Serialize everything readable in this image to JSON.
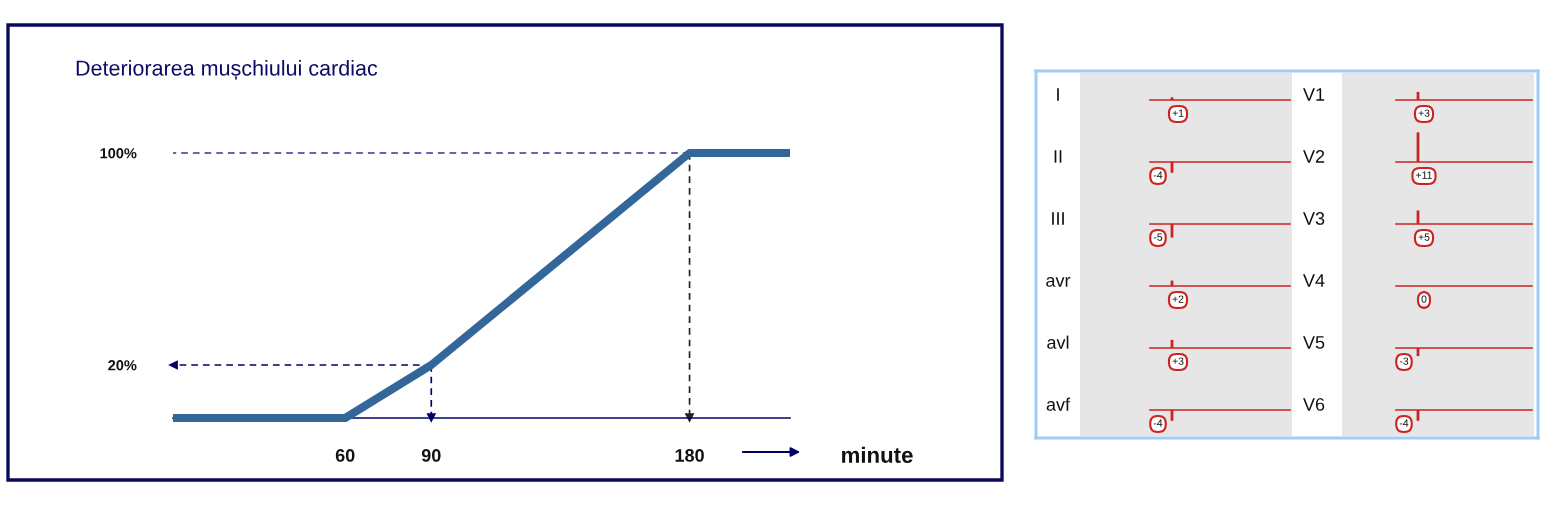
{
  "chart_data": [
    {
      "type": "line",
      "title": "Deteriorarea mușchiului cardiac",
      "xlabel": "minute",
      "x": [
        0,
        60,
        90,
        180,
        215
      ],
      "series": [
        {
          "color": "#336699",
          "values": [
            0,
            0,
            20,
            100,
            100
          ]
        }
      ],
      "xlim": [
        0,
        215
      ],
      "ylim": [
        0,
        100
      ],
      "xticks": [
        60,
        90,
        180
      ],
      "yticks": [
        {
          "value": 20,
          "label": "20%"
        },
        {
          "value": 100,
          "label": "100%"
        }
      ],
      "ref_lines": [
        {
          "axis": "y",
          "value": 100,
          "color": "#333399",
          "line_style": "dashed"
        },
        {
          "axis": "y",
          "value": 20,
          "color": "#000066",
          "line_style": "dashed"
        },
        {
          "axis": "x",
          "value": 90,
          "color": "#000066",
          "line_style": "dashed"
        },
        {
          "axis": "x",
          "value": 180,
          "color": "#222222",
          "line_style": "dashed"
        }
      ],
      "grid": false,
      "marker": "none",
      "line_style": "solid"
    },
    {
      "type": "other",
      "categories": [
        "I",
        "II",
        "III",
        "avr",
        "avl",
        "avf",
        "V1",
        "V2",
        "V3",
        "V4",
        "V5",
        "V6"
      ],
      "values": [
        1,
        -4,
        -5,
        2,
        3,
        -4,
        3,
        11,
        5,
        0,
        -3,
        -4
      ],
      "value_labels": [
        "+1",
        "-4",
        "-5",
        "+2",
        "+3",
        "-4",
        "+3",
        "+11",
        "+5",
        "0",
        "-3",
        "-4"
      ],
      "colors": [
        "#cc2222",
        "#cc2222",
        "#cc2222",
        "#cc2222",
        "#cc2222",
        "#cc2222",
        "#cc2222",
        "#cc2222",
        "#cc2222",
        "#cc2222",
        "#cc2222",
        "#cc2222"
      ]
    }
  ]
}
